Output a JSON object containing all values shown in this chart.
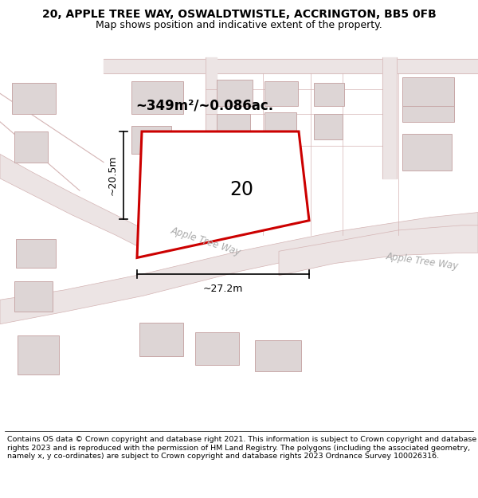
{
  "title": "20, APPLE TREE WAY, OSWALDTWISTLE, ACCRINGTON, BB5 0FB",
  "subtitle": "Map shows position and indicative extent of the property.",
  "footer": "Contains OS data © Crown copyright and database right 2021. This information is subject to Crown copyright and database rights 2023 and is reproduced with the permission of HM Land Registry. The polygons (including the associated geometry, namely x, y co-ordinates) are subject to Crown copyright and database rights 2023 Ordnance Survey 100026316.",
  "map_bg": "#f7f2f2",
  "road_fill": "#ece4e4",
  "road_edge": "#d4b4b4",
  "building_fill": "#ddd5d5",
  "building_edge": "#c8a8a8",
  "highlight_fill": "#ffffff",
  "highlight_edge": "#cc0000",
  "highlight_lw": 2.2,
  "area_label": "~349m²/~0.086ac.",
  "plot_number": "20",
  "dim_width": "~27.2m",
  "dim_height": "~20.5m",
  "road_label1": "Apple Tree Way",
  "road_label2": "Apple Tree Way",
  "title_fontsize": 10,
  "subtitle_fontsize": 9,
  "footer_fontsize": 6.8
}
